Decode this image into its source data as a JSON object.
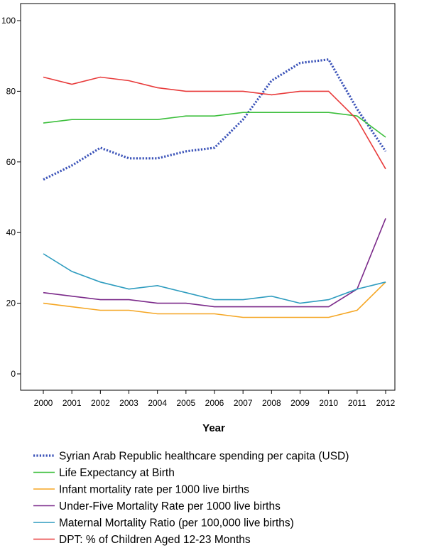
{
  "chart_data": {
    "type": "line",
    "xlabel": "Year",
    "ylabel": "",
    "ylim": [
      0,
      100
    ],
    "yticks": [
      0,
      20,
      40,
      60,
      80,
      100
    ],
    "grid": false,
    "legend_position": "bottom",
    "categories": [
      "2000",
      "2001",
      "2002",
      "2003",
      "2004",
      "2005",
      "2006",
      "2007",
      "2008",
      "2009",
      "2010",
      "2011",
      "2012"
    ],
    "series": [
      {
        "name": "Syrian Arab Republic healthcare spending per capita (USD)",
        "color": "#3a52b8",
        "style": "dotted",
        "values": [
          55,
          59,
          64,
          61,
          61,
          63,
          64,
          72,
          83,
          88,
          89,
          75,
          63
        ]
      },
      {
        "name": "Life Expectancy at Birth",
        "color": "#3cbf3c",
        "style": "solid",
        "values": [
          71,
          72,
          72,
          72,
          72,
          73,
          73,
          74,
          74,
          74,
          74,
          73,
          67
        ]
      },
      {
        "name": "Infant mortality rate per 1000 live births",
        "color": "#f5a623",
        "style": "solid",
        "values": [
          20,
          19,
          18,
          18,
          17,
          17,
          17,
          16,
          16,
          16,
          16,
          18,
          26
        ]
      },
      {
        "name": "Under-Five Mortality Rate per 1000 live births",
        "color": "#7b2a8a",
        "style": "solid",
        "values": [
          23,
          22,
          21,
          21,
          20,
          20,
          19,
          19,
          19,
          19,
          19,
          24,
          44
        ]
      },
      {
        "name": "Maternal Mortality Ratio (per 100,000 live births)",
        "color": "#2e9cbf",
        "style": "solid",
        "values": [
          34,
          29,
          26,
          24,
          25,
          23,
          21,
          21,
          22,
          20,
          21,
          24,
          26
        ]
      },
      {
        "name": "DPT: % of Children Aged 12-23 Months",
        "color": "#e83a3a",
        "style": "solid",
        "values": [
          84,
          82,
          84,
          83,
          81,
          80,
          80,
          80,
          79,
          80,
          80,
          72,
          58
        ]
      }
    ]
  }
}
